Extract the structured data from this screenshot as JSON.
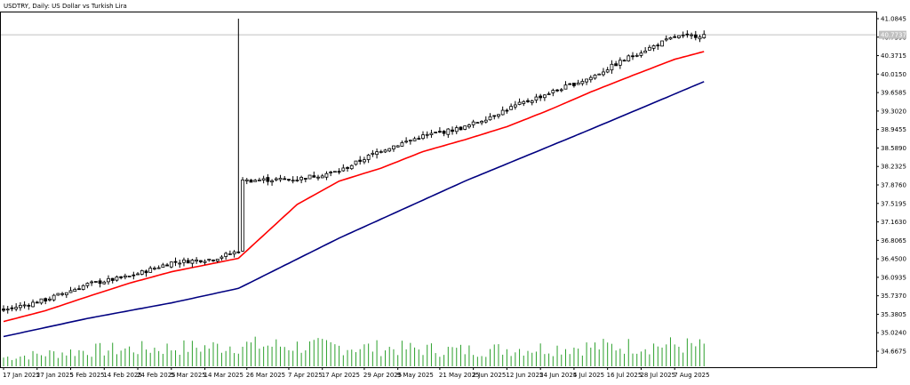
{
  "window": {
    "symbol": "USDTRY",
    "timeframe": "Daily",
    "description": "US Dollar vs Turkish Lira",
    "title_full": "USDTRY, Daily:  US Dollar vs Turkish Lira"
  },
  "colors": {
    "background": "#ffffff",
    "candle": "#000000",
    "ma_fast": "#ff0000",
    "ma_slow": "#000080",
    "volume": "#2ca02c",
    "bid_line": "#c0c0c0",
    "price_tag_bg": "#c0c0c0"
  },
  "current_price": {
    "value": 40.7737,
    "label": "40.7737"
  },
  "chart_data": {
    "type": "candlestick",
    "title": "USDTRY, Daily:  US Dollar vs Turkish Lira",
    "y_ticks": [
      "41.0845",
      "40.7390",
      "40.3715",
      "40.0150",
      "39.6585",
      "39.3020",
      "38.9455",
      "38.5890",
      "38.2325",
      "37.8760",
      "37.5195",
      "37.1630",
      "36.8065",
      "36.4500",
      "36.0935",
      "35.7370",
      "35.3805",
      "35.0240",
      "34.6675"
    ],
    "ylim": [
      34.6675,
      41.0845
    ],
    "x_ticks": [
      "17 Jan 2025",
      "27 Jan 2025",
      "5 Feb 2025",
      "14 Feb 2025",
      "24 Feb 2025",
      "5 Mar 2025",
      "14 Mar 2025",
      "26 Mar 2025",
      "7 Apr 2025",
      "17 Apr 2025",
      "29 Apr 2025",
      "9 May 2025",
      "21 May 2025",
      "2 Jun 2025",
      "12 Jun 2025",
      "24 Jun 2025",
      "4 Jul 2025",
      "16 Jul 2025",
      "28 Jul 2025",
      "7 Aug 2025"
    ],
    "grid": false,
    "series": [
      {
        "name": "",
        "kind": "close",
        "anchors": [
          [
            0,
            35.46
          ],
          [
            10,
            35.66
          ],
          [
            20,
            35.96
          ],
          [
            30,
            36.11
          ],
          [
            40,
            36.38
          ],
          [
            50,
            36.45
          ],
          [
            56,
            36.6
          ],
          [
            57,
            37.95
          ],
          [
            60,
            37.97
          ],
          [
            70,
            37.99
          ],
          [
            80,
            38.14
          ],
          [
            90,
            38.55
          ],
          [
            100,
            38.82
          ],
          [
            110,
            38.99
          ],
          [
            120,
            39.34
          ],
          [
            130,
            39.65
          ],
          [
            140,
            39.95
          ],
          [
            150,
            40.38
          ],
          [
            160,
            40.73
          ],
          [
            167,
            40.77
          ]
        ]
      },
      {
        "name": "",
        "kind": "ma_fast",
        "anchors": [
          [
            0,
            35.24
          ],
          [
            10,
            35.45
          ],
          [
            20,
            35.72
          ],
          [
            30,
            35.98
          ],
          [
            40,
            36.2
          ],
          [
            56,
            36.46
          ],
          [
            70,
            37.5
          ],
          [
            80,
            37.95
          ],
          [
            90,
            38.2
          ],
          [
            100,
            38.52
          ],
          [
            110,
            38.75
          ],
          [
            120,
            39.0
          ],
          [
            130,
            39.32
          ],
          [
            140,
            39.67
          ],
          [
            150,
            39.99
          ],
          [
            160,
            40.3
          ],
          [
            167,
            40.45
          ]
        ]
      },
      {
        "name": "",
        "kind": "ma_slow",
        "anchors": [
          [
            0,
            34.95
          ],
          [
            20,
            35.3
          ],
          [
            40,
            35.6
          ],
          [
            56,
            35.88
          ],
          [
            80,
            36.85
          ],
          [
            110,
            37.95
          ],
          [
            140,
            38.95
          ],
          [
            167,
            39.87
          ]
        ]
      }
    ],
    "spike_bar": {
      "index": 56,
      "high": 41.0845
    },
    "volume_range": [
      0,
      100
    ],
    "volume_anchors": [
      [
        0,
        25
      ],
      [
        20,
        45
      ],
      [
        50,
        55
      ],
      [
        56,
        60
      ],
      [
        80,
        55
      ],
      [
        110,
        45
      ],
      [
        140,
        55
      ],
      [
        160,
        60
      ],
      [
        167,
        55
      ]
    ],
    "bar_count": 168
  }
}
